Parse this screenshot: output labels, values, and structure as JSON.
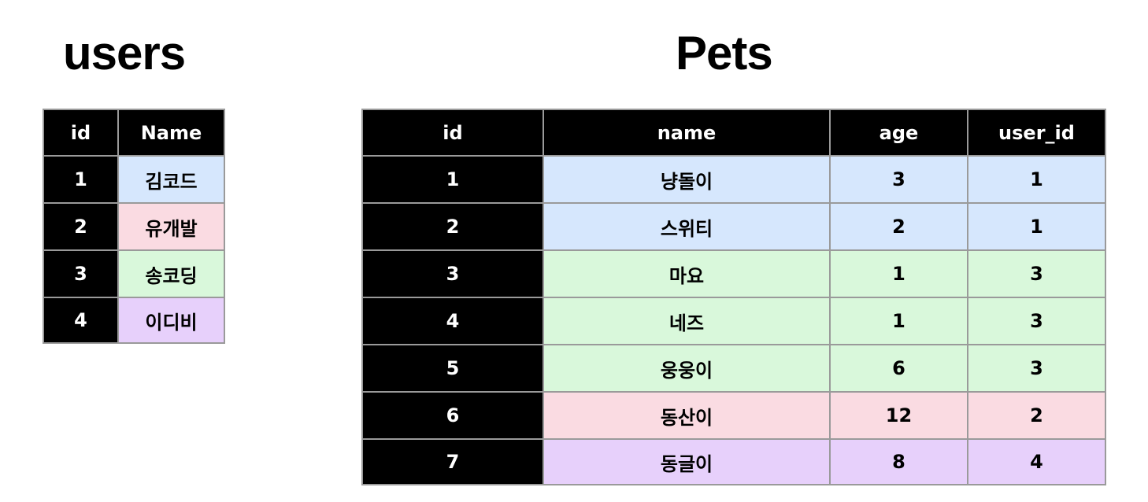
{
  "users": {
    "title": "users",
    "columns": [
      "id",
      "Name"
    ],
    "rows": [
      {
        "id": "1",
        "name": "김코드",
        "color": "#d6e7fd"
      },
      {
        "id": "2",
        "name": "유개발",
        "color": "#fadbe2"
      },
      {
        "id": "3",
        "name": "송코딩",
        "color": "#d9f8db"
      },
      {
        "id": "4",
        "name": "이디비",
        "color": "#e7d0fb"
      }
    ]
  },
  "pets": {
    "title": "Pets",
    "columns": [
      "id",
      "name",
      "age",
      "user_id"
    ],
    "rows": [
      {
        "id": "1",
        "name": "냥돌이",
        "age": "3",
        "user_id": "1",
        "color": "#d6e7fd"
      },
      {
        "id": "2",
        "name": "스위티",
        "age": "2",
        "user_id": "1",
        "color": "#d6e7fd"
      },
      {
        "id": "3",
        "name": "마요",
        "age": "1",
        "user_id": "3",
        "color": "#d9f8db"
      },
      {
        "id": "4",
        "name": "네즈",
        "age": "1",
        "user_id": "3",
        "color": "#d9f8db"
      },
      {
        "id": "5",
        "name": "웅웅이",
        "age": "6",
        "user_id": "3",
        "color": "#d9f8db"
      },
      {
        "id": "6",
        "name": "동산이",
        "age": "12",
        "user_id": "2",
        "color": "#fadbe2"
      },
      {
        "id": "7",
        "name": "동글이",
        "age": "8",
        "user_id": "4",
        "color": "#e7d0fb"
      }
    ]
  }
}
